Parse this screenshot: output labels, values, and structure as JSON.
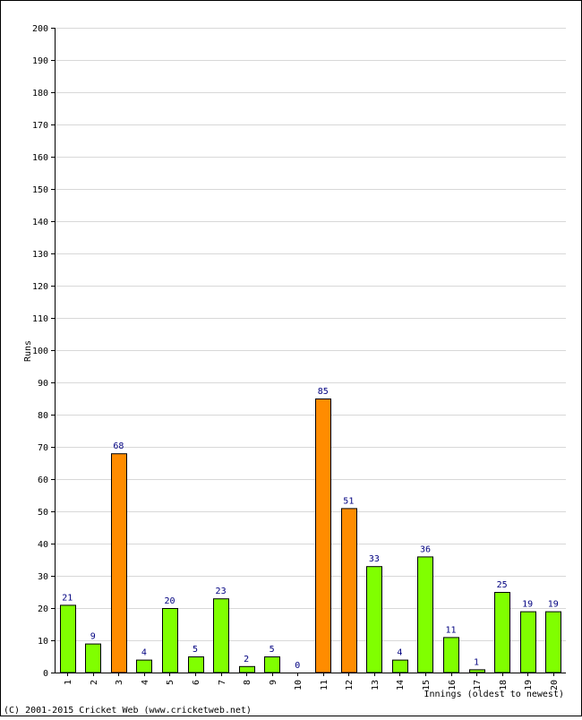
{
  "chart_data": {
    "type": "bar",
    "ylabel": "Runs",
    "xlabel": "Innings (oldest to newest)",
    "ylim": [
      0,
      200
    ],
    "ytick_step": 10,
    "grid": true,
    "categories": [
      "1",
      "2",
      "3",
      "4",
      "5",
      "6",
      "7",
      "8",
      "9",
      "10",
      "11",
      "12",
      "13",
      "14",
      "15",
      "16",
      "17",
      "18",
      "19",
      "20"
    ],
    "values": [
      21,
      9,
      68,
      4,
      20,
      5,
      23,
      2,
      5,
      0,
      85,
      51,
      33,
      4,
      36,
      11,
      1,
      25,
      19,
      19
    ],
    "fifty_flags": [
      false,
      false,
      true,
      false,
      false,
      false,
      false,
      false,
      false,
      false,
      true,
      true,
      false,
      false,
      false,
      false,
      false,
      false,
      false,
      false
    ],
    "colors": {
      "normal": "#80ff00",
      "fifty": "#ff8c00",
      "label": "#000080",
      "grid": "#d8d8d8"
    }
  },
  "footer": "(C) 2001-2015 Cricket Web (www.cricketweb.net)"
}
